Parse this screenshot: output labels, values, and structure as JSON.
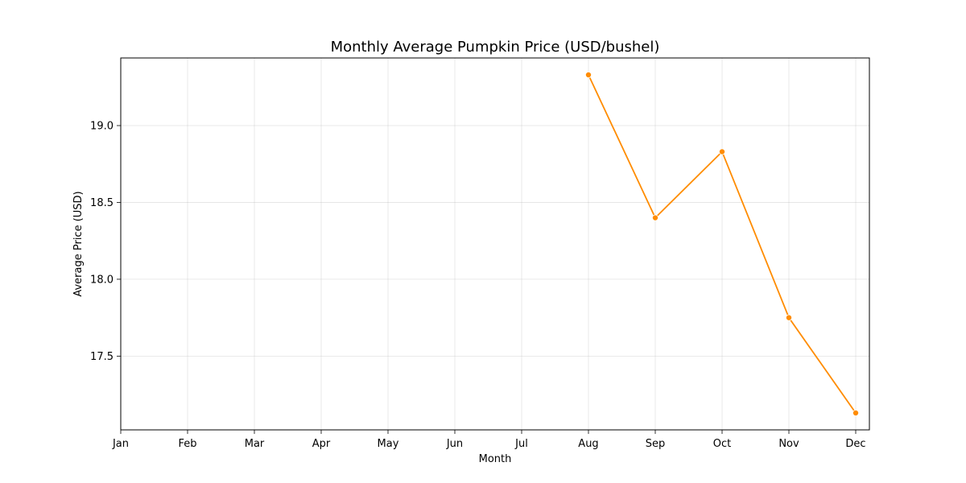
{
  "chart_data": {
    "type": "line",
    "title": "Monthly Average Pumpkin Price (USD/bushel)",
    "xlabel": "Month",
    "ylabel": "Average Price (USD)",
    "categories": [
      "Jan",
      "Feb",
      "Mar",
      "Apr",
      "May",
      "Jun",
      "Jul",
      "Aug",
      "Sep",
      "Oct",
      "Nov",
      "Dec"
    ],
    "series": [
      {
        "values": [
          null,
          null,
          null,
          null,
          null,
          null,
          null,
          19.33,
          18.4,
          18.83,
          17.75,
          17.13
        ],
        "color": "#ff8c00"
      }
    ],
    "ylim": [
      17.02,
      19.44
    ],
    "yticks": [
      17.5,
      18.0,
      18.5,
      19.0
    ],
    "ytick_labels": [
      "17.5",
      "18.0",
      "18.5",
      "19.0"
    ],
    "grid": true,
    "markers": true
  }
}
